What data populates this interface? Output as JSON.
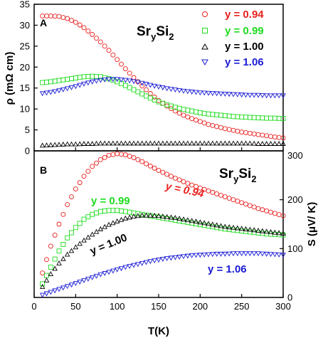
{
  "colors": {
    "y_0_94": "#e8201e",
    "y_0_99": "#1fdc1f",
    "y_1_00": "#000000",
    "y_1_06": "#1b1bd6"
  },
  "chart_data": [
    {
      "panel": "A",
      "type": "scatter",
      "compound": {
        "base": "Sr",
        "sub": "y",
        "rest": "Si",
        "sub2": "2"
      },
      "ylabel": "ρ (mΩ cm)",
      "xlim": [
        0,
        300
      ],
      "ylim": [
        0,
        35
      ],
      "xticks": [
        0,
        50,
        100,
        150,
        200,
        250,
        300
      ],
      "yticks": [
        0,
        5,
        10,
        15,
        20,
        25,
        30,
        35
      ],
      "legend_placement": "top-right",
      "series": [
        {
          "name": "y = 0.94",
          "marker": "circle",
          "x": [
            10,
            20,
            30,
            40,
            50,
            60,
            70,
            80,
            90,
            100,
            110,
            120,
            130,
            140,
            150,
            160,
            170,
            180,
            190,
            200,
            210,
            220,
            230,
            240,
            250,
            260,
            270,
            280,
            290,
            300
          ],
          "y": [
            32.2,
            32.2,
            32.1,
            31.6,
            30.7,
            29.4,
            27.8,
            26.0,
            24.0,
            21.8,
            19.6,
            17.5,
            15.5,
            13.7,
            12.0,
            10.7,
            9.5,
            8.5,
            7.7,
            7.0,
            6.3,
            5.8,
            5.3,
            4.9,
            4.5,
            4.2,
            3.9,
            3.6,
            3.3,
            3.1
          ]
        },
        {
          "name": "y = 0.99",
          "marker": "square",
          "x": [
            10,
            20,
            30,
            40,
            50,
            60,
            70,
            80,
            90,
            100,
            110,
            120,
            130,
            140,
            150,
            160,
            170,
            180,
            190,
            200,
            210,
            220,
            230,
            240,
            250,
            260,
            270,
            280,
            290,
            300
          ],
          "y": [
            16.3,
            16.5,
            16.8,
            17.1,
            17.4,
            17.7,
            17.8,
            17.7,
            17.2,
            16.5,
            15.6,
            14.6,
            13.6,
            12.6,
            11.7,
            11.0,
            10.4,
            9.9,
            9.5,
            9.1,
            8.8,
            8.6,
            8.4,
            8.2,
            8.1,
            8.0,
            7.9,
            7.8,
            7.8,
            7.7
          ]
        },
        {
          "name": "y = 1.00",
          "marker": "triangle-up",
          "x": [
            10,
            20,
            30,
            40,
            50,
            60,
            70,
            80,
            90,
            100,
            110,
            120,
            130,
            140,
            150,
            160,
            170,
            180,
            190,
            200,
            210,
            220,
            230,
            240,
            250,
            260,
            270,
            280,
            290,
            300
          ],
          "y": [
            1.3,
            1.4,
            1.5,
            1.6,
            1.6,
            1.7,
            1.7,
            1.8,
            1.8,
            1.8,
            1.8,
            1.8,
            1.8,
            1.8,
            1.8,
            1.8,
            1.8,
            1.8,
            1.8,
            1.8,
            1.8,
            1.8,
            1.8,
            1.8,
            1.8,
            1.8,
            1.7,
            1.7,
            1.7,
            1.7
          ]
        },
        {
          "name": "y = 1.06",
          "marker": "triangle-down",
          "x": [
            10,
            20,
            30,
            40,
            50,
            60,
            70,
            80,
            90,
            100,
            110,
            120,
            130,
            140,
            150,
            160,
            170,
            180,
            190,
            200,
            210,
            220,
            230,
            240,
            250,
            260,
            270,
            280,
            290,
            300
          ],
          "y": [
            13.7,
            14.0,
            14.4,
            14.9,
            15.4,
            16.0,
            16.5,
            16.9,
            17.1,
            17.1,
            16.9,
            16.6,
            16.2,
            15.7,
            15.3,
            14.9,
            14.6,
            14.3,
            14.1,
            13.9,
            13.8,
            13.7,
            13.6,
            13.5,
            13.4,
            13.3,
            13.3,
            13.2,
            13.2,
            13.2
          ]
        }
      ]
    },
    {
      "panel": "B",
      "type": "scatter",
      "compound": {
        "base": "Sr",
        "sub": "y",
        "rest": "Si",
        "sub2": "2"
      },
      "xlabel": "T(K)",
      "ylabel": "S (μV/ K)",
      "xlim": [
        0,
        300
      ],
      "ylim": [
        0,
        300
      ],
      "xticks": [
        0,
        50,
        100,
        150,
        200,
        250,
        300
      ],
      "yticks": [
        0,
        100,
        200,
        300
      ],
      "series": [
        {
          "name": "y = 0.94",
          "marker": "circle",
          "x": [
            10,
            20,
            30,
            40,
            50,
            60,
            70,
            80,
            90,
            100,
            110,
            120,
            130,
            140,
            150,
            160,
            170,
            180,
            190,
            200,
            210,
            220,
            230,
            240,
            250,
            260,
            270,
            280,
            290,
            300
          ],
          "y": [
            50,
            105,
            150,
            190,
            222,
            248,
            268,
            282,
            291,
            294,
            292,
            286,
            278,
            269,
            260,
            252,
            244,
            237,
            230,
            224,
            218,
            212,
            206,
            200,
            194,
            188,
            182,
            177,
            172,
            167
          ]
        },
        {
          "name": "y = 0.99",
          "marker": "square",
          "x": [
            10,
            20,
            30,
            40,
            50,
            60,
            70,
            80,
            90,
            100,
            110,
            120,
            130,
            140,
            150,
            160,
            170,
            180,
            190,
            200,
            210,
            220,
            230,
            240,
            250,
            260,
            270,
            280,
            290,
            300
          ],
          "y": [
            28,
            62,
            95,
            122,
            143,
            160,
            170,
            176,
            178,
            178,
            176,
            173,
            170,
            167,
            164,
            161,
            158,
            155,
            152,
            149,
            146,
            143,
            140,
            138,
            136,
            134,
            132,
            130,
            129,
            128
          ]
        },
        {
          "name": "y = 1.00",
          "marker": "triangle-up",
          "x": [
            10,
            20,
            30,
            40,
            50,
            60,
            70,
            80,
            90,
            100,
            110,
            120,
            130,
            140,
            150,
            160,
            170,
            180,
            190,
            200,
            210,
            220,
            230,
            240,
            250,
            260,
            270,
            280,
            290,
            300
          ],
          "y": [
            22,
            48,
            70,
            88,
            103,
            117,
            129,
            140,
            149,
            156,
            162,
            166,
            168,
            168,
            167,
            165,
            163,
            160,
            157,
            154,
            151,
            148,
            145,
            143,
            141,
            139,
            137,
            135,
            133,
            131
          ]
        },
        {
          "name": "y = 1.06",
          "marker": "triangle-down",
          "x": [
            10,
            20,
            30,
            40,
            50,
            60,
            70,
            80,
            90,
            100,
            110,
            120,
            130,
            140,
            150,
            160,
            170,
            180,
            190,
            200,
            210,
            220,
            230,
            240,
            250,
            260,
            270,
            280,
            290,
            300
          ],
          "y": [
            5,
            11,
            17,
            23,
            29,
            35,
            41,
            47,
            52,
            57,
            62,
            66,
            70,
            74,
            77,
            80,
            82,
            84,
            86,
            87,
            88,
            89,
            89,
            90,
            90,
            90,
            90,
            89,
            88,
            87
          ]
        }
      ],
      "annotations": [
        {
          "text": "y = 0.94",
          "italic": true,
          "color_key": "y_0_94"
        },
        {
          "text": "y = 0.99",
          "italic": false,
          "color_key": "y_0_99"
        },
        {
          "text": "y = 1.00",
          "italic": false,
          "color_key": "y_1_00"
        },
        {
          "text": "y = 1.06",
          "italic": false,
          "color_key": "y_1_06"
        }
      ]
    }
  ]
}
